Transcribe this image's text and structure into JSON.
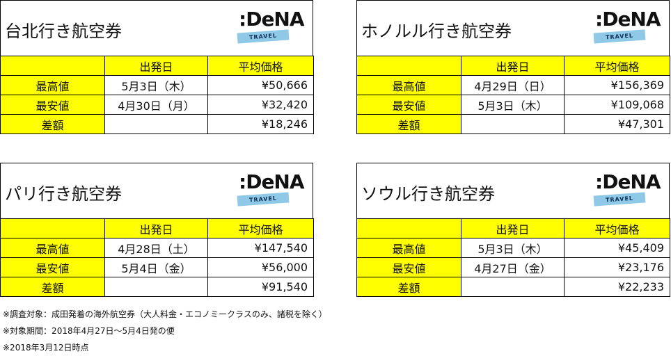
{
  "panels": [
    {
      "title": "台北行き航空券",
      "header": [
        "",
        "出発日",
        "平均価格"
      ],
      "rows": [
        {
          "label": "最高値",
          "date": "5月3日（木）",
          "price": "¥50,666"
        },
        {
          "label": "最安値",
          "date": "4月30日（月）",
          "price": "¥32,420"
        },
        {
          "label": "差額",
          "date": "",
          "price": "¥18,246"
        }
      ]
    },
    {
      "title": "ホノルル行き航空券",
      "header": [
        "",
        "出発日",
        "平均価格"
      ],
      "rows": [
        {
          "label": "最高値",
          "date": "4月29日（日）",
          "price": "¥156,369"
        },
        {
          "label": "最安値",
          "date": "5月3日（木）",
          "price": "¥109,068"
        },
        {
          "label": "差額",
          "date": "",
          "price": "¥47,301"
        }
      ]
    },
    {
      "title": "パリ行き航空券",
      "header": [
        "",
        "出発日",
        "平均価格"
      ],
      "rows": [
        {
          "label": "最高値",
          "date": "4月28日（土）",
          "price": "¥147,540"
        },
        {
          "label": "最安値",
          "date": "5月4日（金）",
          "price": "¥56,000"
        },
        {
          "label": "差額",
          "date": "",
          "price": "¥91,540"
        }
      ]
    },
    {
      "title": "ソウル行き航空券",
      "header": [
        "",
        "出発日",
        "平均価格"
      ],
      "rows": [
        {
          "label": "最高値",
          "date": "5月3日（木）",
          "price": "¥45,409"
        },
        {
          "label": "最安値",
          "date": "4月27日（金）",
          "price": "¥23,176"
        },
        {
          "label": "差額",
          "date": "",
          "price": "¥22,233"
        }
      ]
    }
  ],
  "logo": {
    "word": ":DeNA",
    "band": "TRAVEL"
  },
  "notes": [
    "※調査対象：成田発着の海外航空券（大人料金・エコノミークラスのみ、諸税を除く）",
    "※対象期間：2018年4月27日～5月4日発の便",
    "※2018年3月12日時点"
  ],
  "colors": {
    "highlight": "#ffff00",
    "logo_band": "#8fc9e8"
  }
}
